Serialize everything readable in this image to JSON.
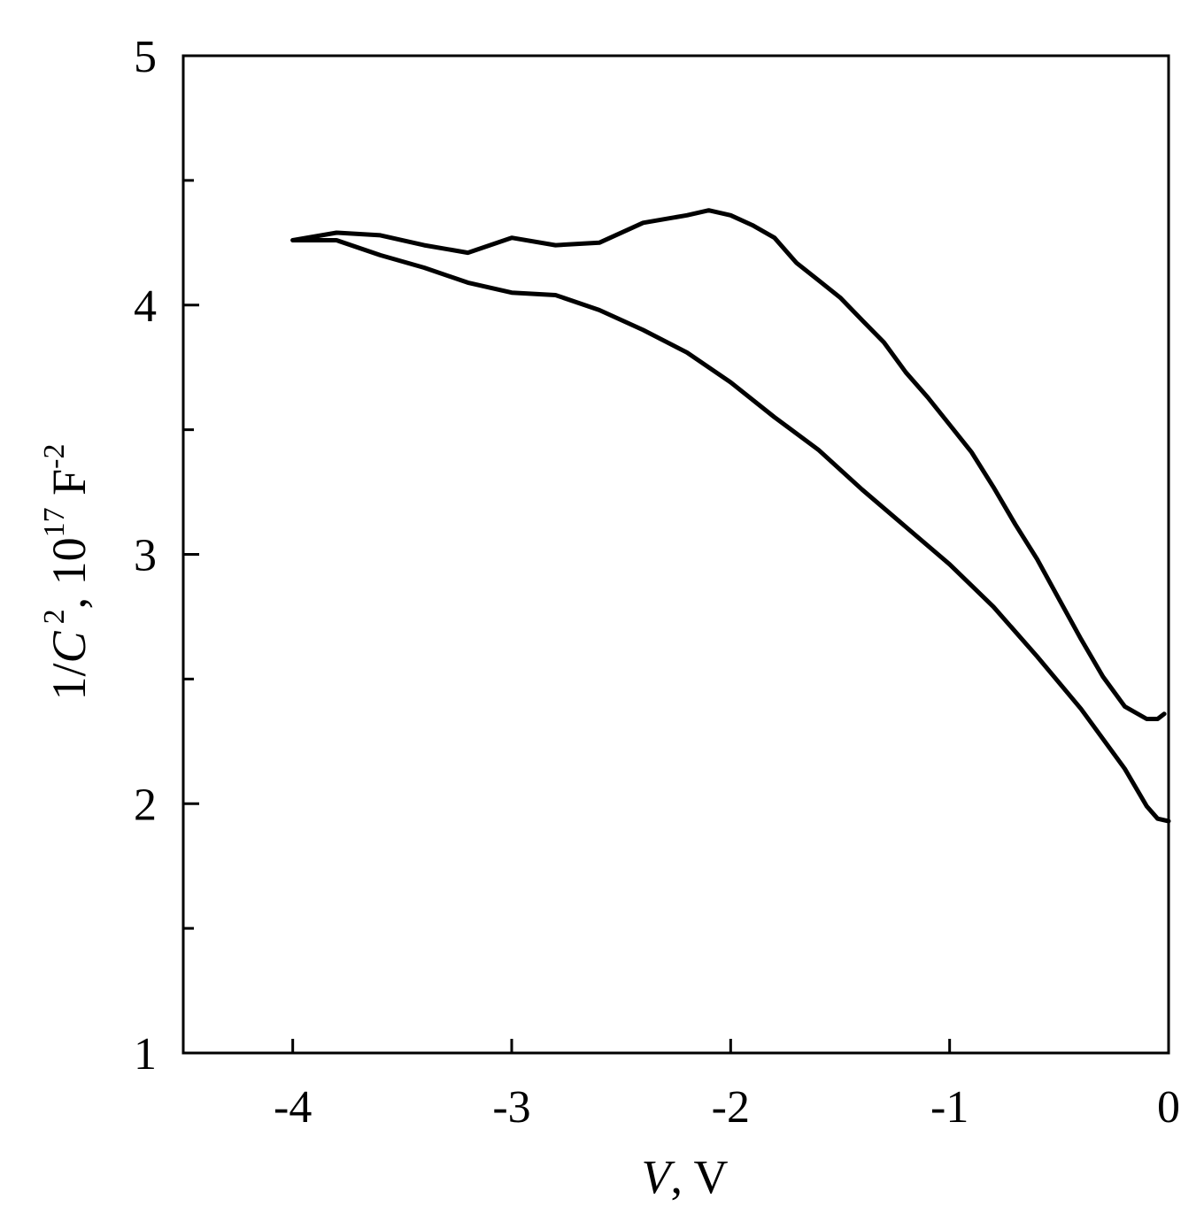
{
  "chart_data": {
    "type": "line",
    "title": "",
    "xlabel": {
      "var": "V",
      "rest": ", V"
    },
    "ylabel": {
      "prefix": "1/",
      "var": "C",
      "exp1": "2",
      "mid": ", 10",
      "exp2": "17",
      "unit": " F",
      "exp3": "-2"
    },
    "xlim": [
      -4.5,
      0
    ],
    "ylim": [
      1,
      5
    ],
    "x_ticks": [
      -4,
      -3,
      -2,
      -1,
      0
    ],
    "x_tick_labels": [
      "-4",
      "-3",
      "-2",
      "-1",
      "0"
    ],
    "y_ticks": [
      1,
      2,
      3,
      4,
      5
    ],
    "y_tick_labels": [
      "1",
      "2",
      "3",
      "4",
      "5"
    ],
    "y_minor_ticks": [
      1.5,
      2.5,
      3.5,
      4.5
    ],
    "grid": false,
    "legend": false,
    "series": [
      {
        "color": "#000000",
        "x": [
          -4.0,
          -3.8,
          -3.6,
          -3.4,
          -3.2,
          -3.0,
          -2.8,
          -2.6,
          -2.4,
          -2.2,
          -2.1,
          -2.0,
          -1.9,
          -1.8,
          -1.7,
          -1.6,
          -1.5,
          -1.4,
          -1.3,
          -1.2,
          -1.1,
          -1.0,
          -0.9,
          -0.8,
          -0.7,
          -0.6,
          -0.5,
          -0.4,
          -0.3,
          -0.2,
          -0.1,
          -0.05,
          -0.02
        ],
        "y": [
          4.26,
          4.29,
          4.28,
          4.24,
          4.21,
          4.27,
          4.24,
          4.25,
          4.33,
          4.36,
          4.38,
          4.36,
          4.32,
          4.27,
          4.17,
          4.1,
          4.03,
          3.94,
          3.85,
          3.73,
          3.63,
          3.52,
          3.41,
          3.27,
          3.12,
          2.98,
          2.82,
          2.66,
          2.51,
          2.39,
          2.34,
          2.34,
          2.36
        ]
      },
      {
        "color": "#000000",
        "x": [
          -4.0,
          -3.8,
          -3.6,
          -3.4,
          -3.2,
          -3.0,
          -2.8,
          -2.6,
          -2.4,
          -2.2,
          -2.0,
          -1.8,
          -1.6,
          -1.4,
          -1.2,
          -1.0,
          -0.8,
          -0.6,
          -0.4,
          -0.2,
          -0.1,
          -0.05,
          0.0
        ],
        "y": [
          4.26,
          4.26,
          4.2,
          4.15,
          4.09,
          4.05,
          4.04,
          3.98,
          3.9,
          3.81,
          3.69,
          3.55,
          3.42,
          3.26,
          3.11,
          2.96,
          2.79,
          2.59,
          2.38,
          2.14,
          1.99,
          1.94,
          1.93
        ]
      }
    ]
  }
}
